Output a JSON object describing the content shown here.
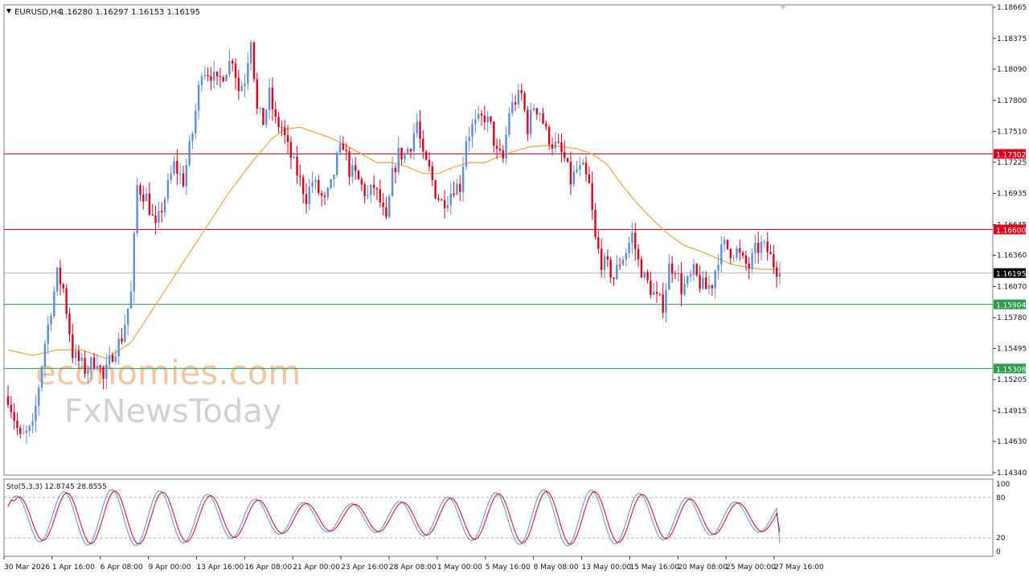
{
  "header": {
    "symbol_label": "EURUSD,H4",
    "ohlc_label": "1.16280 1.16297 1.16153 1.16195"
  },
  "price_axis": {
    "ticks": [
      "1.18665",
      "1.18375",
      "1.18090",
      "1.17800",
      "1.17510",
      "1.17225",
      "1.16935",
      "1.16645",
      "1.16360",
      "1.16070",
      "1.15780",
      "1.15495",
      "1.15205",
      "1.14915",
      "1.14630",
      "1.14340"
    ],
    "ylim": [
      1.1434,
      1.18665
    ]
  },
  "oscillator": {
    "label": "Sto(5,3,3) 12.8745 28.8555",
    "scale_labels": [
      "100",
      "80",
      "20",
      "0"
    ],
    "levels": [
      80,
      20
    ],
    "ylim": [
      0,
      100
    ]
  },
  "time_axis": {
    "labels": [
      "30 Mar 2026",
      "1 Apr 16:00",
      "6 Apr 08:00",
      "9 Apr 00:00",
      "13 Apr 16:00",
      "16 Apr 08:00",
      "21 Apr 00:00",
      "23 Apr 16:00",
      "28 Apr 08:00",
      "1 May 00:00",
      "5 May 16:00",
      "8 May 08:00",
      "13 May 00:00",
      "15 May 16:00",
      "20 May 08:00",
      "25 May 00:00",
      "27 May 16:00"
    ]
  },
  "watermark": {
    "line1": "economies.com",
    "line2": "FxNewsToday"
  },
  "colors": {
    "bull": "#5b8ed6",
    "bear": "#d9001b",
    "ma": "#f2a33a",
    "resistance": "#d9001b",
    "support": "#2e9b4b",
    "current": "#b5b5b5",
    "stoch_main": "#5b8ed6",
    "stoch_signal": "#d9001b"
  },
  "chart_data": {
    "type": "candlestick",
    "symbol": "EURUSD",
    "timeframe": "H4",
    "last_price": 1.16195,
    "horizontal_levels": [
      {
        "price": 1.17302,
        "label": "1.17302",
        "kind": "resistance"
      },
      {
        "price": 1.166,
        "label": "1.16600",
        "kind": "resistance"
      },
      {
        "price": 1.16195,
        "label": "1.16195",
        "kind": "current"
      },
      {
        "price": 1.15904,
        "label": "1.15904",
        "kind": "support"
      },
      {
        "price": 1.15308,
        "label": "1.15308",
        "kind": "support"
      }
    ],
    "price_path": [
      [
        0,
        1.1505
      ],
      [
        4,
        1.1465
      ],
      [
        8,
        1.1475
      ],
      [
        12,
        1.1555
      ],
      [
        16,
        1.1618
      ],
      [
        18,
        1.1605
      ],
      [
        21,
        1.1545
      ],
      [
        25,
        1.153
      ],
      [
        29,
        1.154
      ],
      [
        31,
        1.152
      ],
      [
        34,
        1.1545
      ],
      [
        37,
        1.156
      ],
      [
        40,
        1.16
      ],
      [
        42,
        1.17
      ],
      [
        45,
        1.169
      ],
      [
        48,
        1.166
      ],
      [
        51,
        1.169
      ],
      [
        54,
        1.172
      ],
      [
        57,
        1.1705
      ],
      [
        60,
        1.175
      ],
      [
        63,
        1.181
      ],
      [
        66,
        1.1805
      ],
      [
        68,
        1.1795
      ],
      [
        71,
        1.181
      ],
      [
        73,
        1.182
      ],
      [
        75,
        1.179
      ],
      [
        77,
        1.18
      ],
      [
        79,
        1.184
      ],
      [
        81,
        1.177
      ],
      [
        83,
        1.176
      ],
      [
        85,
        1.1785
      ],
      [
        87,
        1.176
      ],
      [
        89,
        1.1755
      ],
      [
        91,
        1.1735
      ],
      [
        93,
        1.172
      ],
      [
        95,
        1.1705
      ],
      [
        97,
        1.169
      ],
      [
        99,
        1.1705
      ],
      [
        101,
        1.1695
      ],
      [
        103,
        1.1685
      ],
      [
        105,
        1.17
      ],
      [
        107,
        1.1725
      ],
      [
        109,
        1.174
      ],
      [
        111,
        1.1715
      ],
      [
        113,
        1.171
      ],
      [
        115,
        1.17
      ],
      [
        117,
        1.169
      ],
      [
        119,
        1.17
      ],
      [
        121,
        1.1685
      ],
      [
        123,
        1.1665
      ],
      [
        125,
        1.171
      ],
      [
        127,
        1.173
      ],
      [
        129,
        1.173
      ],
      [
        131,
        1.174
      ],
      [
        133,
        1.176
      ],
      [
        135,
        1.1725
      ],
      [
        137,
        1.1715
      ],
      [
        139,
        1.1695
      ],
      [
        141,
        1.1685
      ],
      [
        143,
        1.169
      ],
      [
        145,
        1.17
      ],
      [
        147,
        1.17
      ],
      [
        149,
        1.1745
      ],
      [
        151,
        1.1755
      ],
      [
        153,
        1.176
      ],
      [
        155,
        1.1765
      ],
      [
        157,
        1.1755
      ],
      [
        159,
        1.173
      ],
      [
        161,
        1.1725
      ],
      [
        163,
        1.177
      ],
      [
        165,
        1.178
      ],
      [
        167,
        1.1785
      ],
      [
        169,
        1.1755
      ],
      [
        171,
        1.1775
      ],
      [
        173,
        1.177
      ],
      [
        175,
        1.175
      ],
      [
        177,
        1.174
      ],
      [
        179,
        1.1735
      ],
      [
        181,
        1.1725
      ],
      [
        183,
        1.1705
      ],
      [
        185,
        1.1715
      ],
      [
        187,
        1.1715
      ],
      [
        189,
        1.17
      ],
      [
        191,
        1.165
      ],
      [
        193,
        1.163
      ],
      [
        195,
        1.1625
      ],
      [
        197,
        1.1615
      ],
      [
        199,
        1.163
      ],
      [
        201,
        1.164
      ],
      [
        203,
        1.1655
      ],
      [
        205,
        1.163
      ],
      [
        207,
        1.1615
      ],
      [
        209,
        1.1605
      ],
      [
        211,
        1.1595
      ],
      [
        213,
        1.159
      ],
      [
        215,
        1.1625
      ],
      [
        217,
        1.1625
      ],
      [
        219,
        1.1605
      ],
      [
        221,
        1.161
      ],
      [
        223,
        1.162
      ],
      [
        225,
        1.161
      ],
      [
        227,
        1.1605
      ],
      [
        229,
        1.161
      ],
      [
        231,
        1.1635
      ],
      [
        233,
        1.1645
      ],
      [
        235,
        1.164
      ],
      [
        237,
        1.164
      ],
      [
        239,
        1.163
      ],
      [
        241,
        1.1625
      ],
      [
        243,
        1.164
      ],
      [
        245,
        1.1645
      ],
      [
        247,
        1.164
      ],
      [
        249,
        1.1628
      ],
      [
        251,
        1.16195
      ]
    ],
    "ma_path": [
      [
        0,
        1.1548
      ],
      [
        8,
        1.1543
      ],
      [
        16,
        1.1548
      ],
      [
        24,
        1.1548
      ],
      [
        32,
        1.154
      ],
      [
        40,
        1.1555
      ],
      [
        48,
        1.159
      ],
      [
        56,
        1.1625
      ],
      [
        64,
        1.166
      ],
      [
        72,
        1.1695
      ],
      [
        80,
        1.1725
      ],
      [
        86,
        1.1745
      ],
      [
        90,
        1.1753
      ],
      [
        95,
        1.1755
      ],
      [
        100,
        1.175
      ],
      [
        105,
        1.1745
      ],
      [
        110,
        1.1738
      ],
      [
        115,
        1.173
      ],
      [
        120,
        1.1722
      ],
      [
        125,
        1.1722
      ],
      [
        130,
        1.1718
      ],
      [
        135,
        1.1712
      ],
      [
        140,
        1.1712
      ],
      [
        145,
        1.1718
      ],
      [
        150,
        1.1722
      ],
      [
        155,
        1.1722
      ],
      [
        160,
        1.1728
      ],
      [
        165,
        1.1733
      ],
      [
        170,
        1.1737
      ],
      [
        175,
        1.1738
      ],
      [
        180,
        1.1737
      ],
      [
        185,
        1.1735
      ],
      [
        190,
        1.173
      ],
      [
        195,
        1.172
      ],
      [
        200,
        1.17
      ],
      [
        205,
        1.1683
      ],
      [
        210,
        1.1668
      ],
      [
        215,
        1.1655
      ],
      [
        220,
        1.1645
      ],
      [
        225,
        1.164
      ],
      [
        230,
        1.1634
      ],
      [
        235,
        1.1628
      ],
      [
        240,
        1.1625
      ],
      [
        245,
        1.1623
      ],
      [
        251,
        1.1623
      ]
    ],
    "stoch_phase": 0.55,
    "stoch_period": 7.8
  }
}
